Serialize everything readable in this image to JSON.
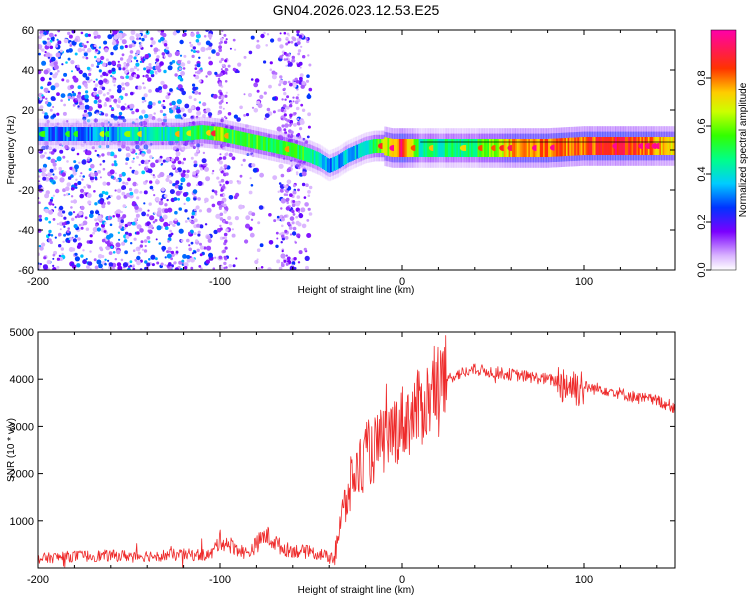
{
  "title": "GN04.2026.023.12.53.E25",
  "chart_data": [
    {
      "type": "heatmap",
      "xlabel": "Height of straight line (km)",
      "ylabel": "Frequency (Hz)",
      "xlim": [
        -200,
        150
      ],
      "ylim": [
        -60,
        60
      ],
      "xticks": [
        -200,
        -100,
        0,
        100
      ],
      "xtick_labels": [
        "-200",
        "-100",
        "0",
        "100"
      ],
      "yticks": [
        -60,
        -40,
        -20,
        0,
        20,
        40,
        60
      ],
      "ytick_labels": [
        "-60",
        "-40",
        "-20",
        "0",
        "20",
        "40",
        "60"
      ],
      "colorbar": {
        "label": "Normalized spectral amplitude",
        "range": [
          0,
          1
        ],
        "ticks": [
          0,
          0.2,
          0.4,
          0.6,
          0.8
        ],
        "tick_labels": [
          "0.0",
          "0.2",
          "0.4",
          "0.6",
          "0.8"
        ]
      },
      "ridge": {
        "x": [
          -200,
          -180,
          -160,
          -140,
          -120,
          -110,
          -100,
          -90,
          -80,
          -70,
          -60,
          -50,
          -45,
          -40,
          -35,
          -30,
          -25,
          -20,
          -15,
          -10,
          -5,
          0,
          10,
          20,
          40,
          60,
          80,
          100,
          120,
          150
        ],
        "y": [
          8,
          8,
          8,
          8,
          8,
          9,
          8,
          6,
          4,
          2,
          0,
          -3,
          -5,
          -8,
          -6,
          -3,
          -1,
          1,
          2,
          2,
          1,
          1,
          1,
          1,
          1,
          1,
          1,
          2,
          2,
          2
        ],
        "amplitude": [
          0.3,
          0.3,
          0.35,
          0.4,
          0.45,
          0.5,
          0.6,
          0.5,
          0.55,
          0.5,
          0.55,
          0.5,
          0.35,
          0.3,
          0.35,
          0.35,
          0.35,
          0.4,
          0.5,
          0.6,
          0.7,
          0.9,
          0.45,
          0.45,
          0.5,
          0.75,
          0.8,
          0.8,
          0.9,
          0.7
        ]
      }
    },
    {
      "type": "line",
      "xlabel": "Height of straight line (km)",
      "ylabel": "SNR (10 * v/v)",
      "xlim": [
        -200,
        150
      ],
      "ylim": [
        0,
        5000
      ],
      "xticks": [
        -200,
        -100,
        0,
        100
      ],
      "xtick_labels": [
        "-200",
        "-100",
        "0",
        "100"
      ],
      "yticks": [
        1000,
        2000,
        3000,
        4000,
        5000
      ],
      "ytick_labels": [
        "1000",
        "2000",
        "3000",
        "4000",
        "5000"
      ],
      "color": "#ee2a2a",
      "series": [
        {
          "name": "SNR",
          "x": [
            -200,
            -180,
            -160,
            -140,
            -120,
            -105,
            -100,
            -95,
            -85,
            -75,
            -65,
            -55,
            -45,
            -38,
            -34,
            -30,
            -27,
            -24,
            -20,
            -15,
            -10,
            -5,
            0,
            5,
            10,
            15,
            20,
            25,
            30,
            40,
            50,
            60,
            70,
            80,
            85,
            90,
            95,
            100,
            105,
            110,
            120,
            130,
            140,
            150
          ],
          "y": [
            200,
            250,
            260,
            260,
            280,
            280,
            600,
            500,
            300,
            700,
            400,
            350,
            300,
            200,
            900,
            1500,
            1900,
            2100,
            2400,
            2500,
            2700,
            2900,
            3100,
            3200,
            3400,
            3600,
            3900,
            4000,
            4100,
            4200,
            4150,
            4100,
            4050,
            4000,
            3950,
            3900,
            3850,
            3850,
            3800,
            3800,
            3700,
            3600,
            3550,
            3400
          ]
        }
      ]
    }
  ]
}
